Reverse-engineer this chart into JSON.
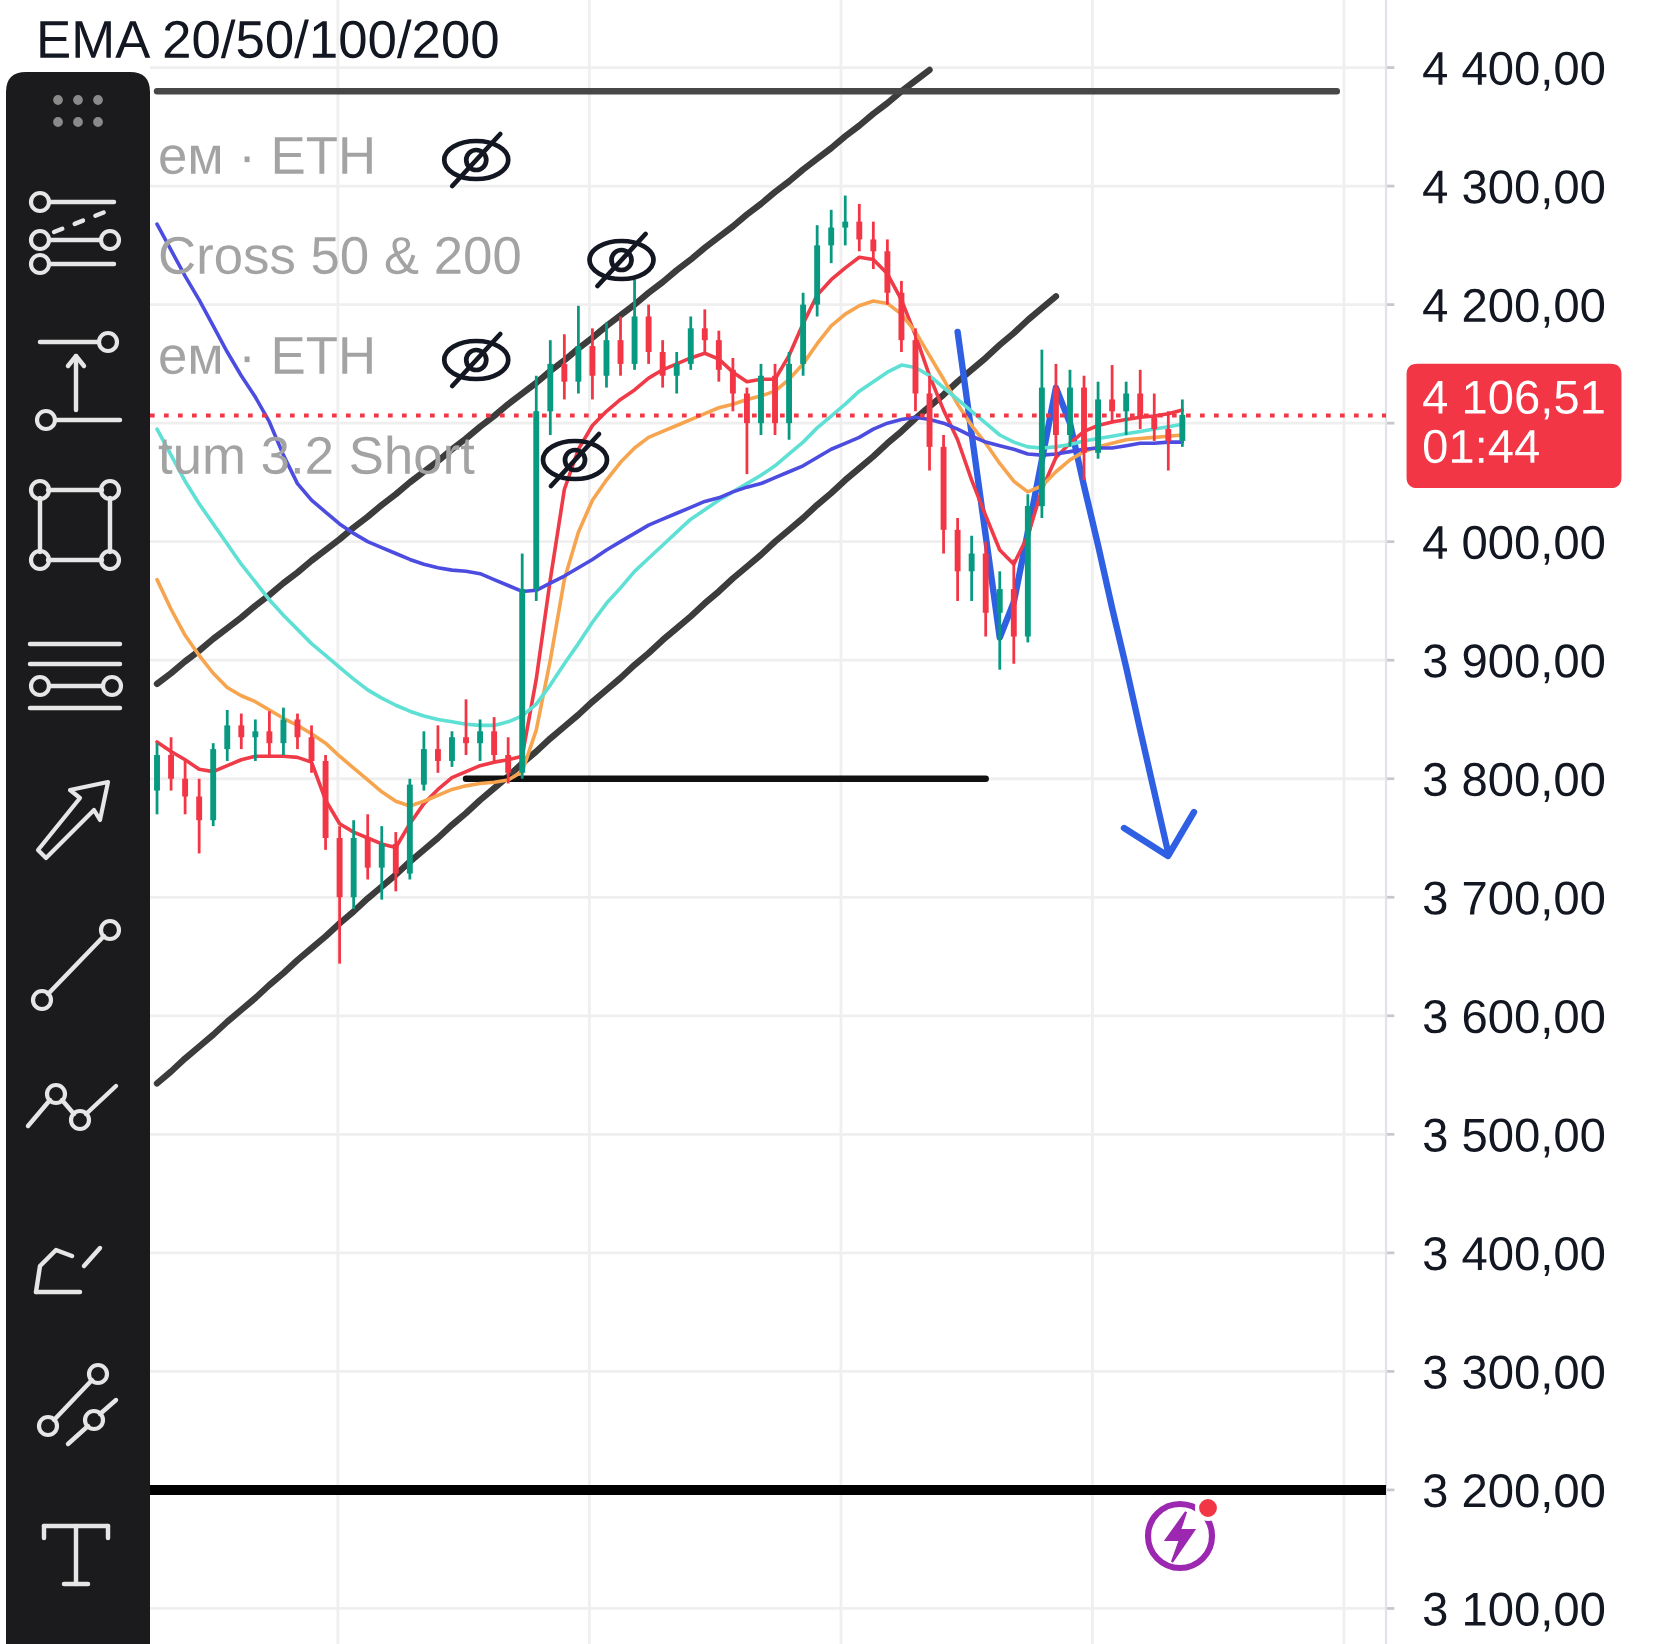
{
  "chart_data": {
    "type": "candlestick",
    "title": "EMA 20/50/100/200",
    "annotations": [
      "ем · ETH",
      "Cross 50 & 200",
      "ем · ETH",
      "tum 3.2 Short"
    ],
    "categories": [
      null,
      null,
      null,
      null,
      null,
      null,
      null,
      null,
      null,
      null,
      null,
      null,
      null,
      null,
      null,
      null,
      null,
      null,
      null,
      null,
      null,
      null,
      null,
      null,
      null,
      null,
      null,
      null,
      null,
      null,
      null,
      null,
      null,
      null,
      null,
      null,
      null,
      null,
      null,
      null,
      null,
      null,
      null,
      null,
      null,
      null,
      null,
      null,
      null,
      null,
      null,
      null,
      null,
      null,
      null,
      null,
      null,
      null,
      null,
      null,
      null,
      null,
      null,
      null,
      null,
      null,
      null,
      null,
      null,
      null,
      null,
      null,
      null,
      null,
      null,
      null,
      null,
      null,
      null,
      null,
      null,
      null,
      null,
      null,
      null,
      null,
      null,
      null
    ],
    "ohlc": [
      [
        3790,
        3830,
        3770,
        3820
      ],
      [
        3820,
        3835,
        3790,
        3800
      ],
      [
        3800,
        3815,
        3770,
        3785
      ],
      [
        3785,
        3800,
        3737,
        3765
      ],
      [
        3765,
        3830,
        3760,
        3825
      ],
      [
        3825,
        3858,
        3815,
        3845
      ],
      [
        3845,
        3855,
        3825,
        3835
      ],
      [
        3835,
        3850,
        3815,
        3840
      ],
      [
        3840,
        3857,
        3820,
        3830
      ],
      [
        3830,
        3860,
        3820,
        3850
      ],
      [
        3850,
        3855,
        3825,
        3835
      ],
      [
        3835,
        3845,
        3805,
        3815
      ],
      [
        3815,
        3820,
        3740,
        3750
      ],
      [
        3750,
        3760,
        3644,
        3700
      ],
      [
        3700,
        3765,
        3690,
        3750
      ],
      [
        3750,
        3770,
        3715,
        3725
      ],
      [
        3725,
        3760,
        3698,
        3745
      ],
      [
        3745,
        3755,
        3705,
        3720
      ],
      [
        3720,
        3800,
        3715,
        3795
      ],
      [
        3795,
        3840,
        3790,
        3825
      ],
      [
        3825,
        3845,
        3805,
        3815
      ],
      [
        3815,
        3840,
        3810,
        3835
      ],
      [
        3835,
        3867,
        3820,
        3830
      ],
      [
        3830,
        3850,
        3815,
        3840
      ],
      [
        3840,
        3852,
        3815,
        3820
      ],
      [
        3820,
        3835,
        3796,
        3805
      ],
      [
        3805,
        3990,
        3800,
        3960
      ],
      [
        3960,
        4140,
        3950,
        4110
      ],
      [
        4110,
        4170,
        4090,
        4150
      ],
      [
        4150,
        4175,
        4120,
        4135
      ],
      [
        4135,
        4199,
        4125,
        4165
      ],
      [
        4165,
        4180,
        4120,
        4140
      ],
      [
        4140,
        4185,
        4130,
        4170
      ],
      [
        4170,
        4190,
        4140,
        4150
      ],
      [
        4150,
        4221,
        4145,
        4190
      ],
      [
        4190,
        4200,
        4150,
        4160
      ],
      [
        4160,
        4170,
        4130,
        4140
      ],
      [
        4140,
        4160,
        4125,
        4150
      ],
      [
        4150,
        4190,
        4145,
        4180
      ],
      [
        4180,
        4196,
        4160,
        4170
      ],
      [
        4170,
        4178,
        4135,
        4145
      ],
      [
        4145,
        4155,
        4110,
        4125
      ],
      [
        4125,
        4130,
        4057,
        4100
      ],
      [
        4100,
        4150,
        4090,
        4140
      ],
      [
        4140,
        4150,
        4090,
        4100
      ],
      [
        4100,
        4160,
        4086,
        4150
      ],
      [
        4150,
        4210,
        4140,
        4200
      ],
      [
        4200,
        4267,
        4190,
        4250
      ],
      [
        4250,
        4280,
        4235,
        4265
      ],
      [
        4265,
        4292,
        4250,
        4270
      ],
      [
        4270,
        4285,
        4245,
        4255
      ],
      [
        4255,
        4270,
        4230,
        4245
      ],
      [
        4245,
        4255,
        4200,
        4210
      ],
      [
        4210,
        4220,
        4160,
        4170
      ],
      [
        4170,
        4180,
        4110,
        4125
      ],
      [
        4125,
        4140,
        4060,
        4080
      ],
      [
        4080,
        4090,
        3990,
        4010
      ],
      [
        4010,
        4020,
        3950,
        3975
      ],
      [
        3975,
        4005,
        3950,
        3990
      ],
      [
        3990,
        4000,
        3920,
        3940
      ],
      [
        3940,
        3975,
        3892,
        3960
      ],
      [
        3960,
        3985,
        3897,
        3920
      ],
      [
        3920,
        4040,
        3915,
        4030
      ],
      [
        4030,
        4162,
        4020,
        4130
      ],
      [
        4130,
        4150,
        4070,
        4090
      ],
      [
        4090,
        4145,
        4080,
        4130
      ],
      [
        4130,
        4140,
        4052,
        4075
      ],
      [
        4075,
        4135,
        4070,
        4120
      ],
      [
        4120,
        4149,
        4100,
        4110
      ],
      [
        4110,
        4135,
        4090,
        4125
      ],
      [
        4125,
        4145,
        4095,
        4105
      ],
      [
        4105,
        4125,
        4085,
        4095
      ],
      [
        4095,
        4110,
        4060,
        4085
      ],
      [
        4085,
        4120,
        4080,
        4107
      ],
      null,
      null,
      null,
      null,
      null,
      null,
      null,
      null,
      null,
      null,
      null,
      null,
      null,
      null
    ],
    "series": [
      {
        "type": "line",
        "color": "#ef3a47",
        "values": [
          3831,
          3823,
          3816,
          3808,
          3806,
          3811,
          3816,
          3819,
          3819,
          3819,
          3818,
          3814,
          3782,
          3762,
          3755,
          3750,
          3745,
          3742,
          3762,
          3779,
          3791,
          3801,
          3806,
          3811,
          3814,
          3816,
          3819,
          3884,
          3968,
          4044,
          4078,
          4098,
          4110,
          4120,
          4128,
          4138,
          4145,
          4150,
          4155,
          4159,
          4154,
          4143,
          4135,
          4137,
          4137,
          4157,
          4184,
          4208,
          4221,
          4231,
          4240,
          4238,
          4226,
          4204,
          4174,
          4140,
          4111,
          4086,
          4052,
          4022,
          3993,
          3981,
          4005,
          4044,
          4071,
          4083,
          4093,
          4098,
          4101,
          4103,
          4105,
          4106,
          4108,
          4111,
          null,
          null,
          null,
          null,
          null,
          null,
          null,
          null,
          null,
          null,
          null,
          null,
          null,
          null
        ]
      },
      {
        "type": "line",
        "color": "#f7a44f",
        "values": [
          3968,
          3943,
          3921,
          3904,
          3889,
          3877,
          3870,
          3865,
          3858,
          3851,
          3845,
          3838,
          3830,
          3819,
          3809,
          3799,
          3789,
          3781,
          3777,
          3781,
          3786,
          3791,
          3794,
          3796,
          3797,
          3799,
          3806,
          3841,
          3900,
          3968,
          4008,
          4035,
          4052,
          4067,
          4079,
          4088,
          4093,
          4098,
          4103,
          4108,
          4113,
          4116,
          4120,
          4123,
          4127,
          4137,
          4150,
          4167,
          4182,
          4192,
          4199,
          4203,
          4201,
          4192,
          4177,
          4157,
          4137,
          4116,
          4098,
          4083,
          4066,
          4051,
          4042,
          4047,
          4059,
          4069,
          4076,
          4080,
          4083,
          4086,
          4087,
          4088,
          4089,
          4090,
          null,
          null,
          null,
          null,
          null,
          null,
          null,
          null,
          null,
          null,
          null,
          null,
          null,
          null
        ]
      },
      {
        "type": "line",
        "color": "#5fe0d5",
        "values": [
          4095,
          4073,
          4051,
          4032,
          4015,
          3998,
          3981,
          3966,
          3951,
          3938,
          3926,
          3914,
          3904,
          3894,
          3884,
          3875,
          3868,
          3862,
          3857,
          3853,
          3850,
          3848,
          3846,
          3845,
          3845,
          3848,
          3853,
          3863,
          3879,
          3897,
          3914,
          3932,
          3948,
          3961,
          3975,
          3986,
          3997,
          4008,
          4019,
          4027,
          4035,
          4042,
          4049,
          4056,
          4064,
          4074,
          4084,
          4096,
          4106,
          4116,
          4127,
          4135,
          4143,
          4149,
          4147,
          4140,
          4130,
          4120,
          4110,
          4100,
          4090,
          4084,
          4080,
          4079,
          4080,
          4082,
          4085,
          4087,
          4089,
          4091,
          4093,
          4095,
          4097,
          4099,
          null,
          null,
          null,
          null,
          null,
          null,
          null,
          null,
          null,
          null,
          null,
          null,
          null,
          null
        ]
      },
      {
        "type": "line",
        "color": "#4c4ce0",
        "values": [
          4268,
          4246,
          4224,
          4204,
          4182,
          4160,
          4140,
          4122,
          4101,
          4073,
          4049,
          4035,
          4025,
          4015,
          4007,
          4000,
          3995,
          3990,
          3985,
          3981,
          3978,
          3976,
          3975,
          3973,
          3968,
          3963,
          3958,
          3959,
          3965,
          3971,
          3978,
          3985,
          3993,
          4000,
          4007,
          4014,
          4019,
          4024,
          4029,
          4034,
          4037,
          4042,
          4046,
          4049,
          4054,
          4059,
          4064,
          4071,
          4078,
          4083,
          4088,
          4095,
          4100,
          4103,
          4105,
          4103,
          4100,
          4095,
          4089,
          4084,
          4081,
          4078,
          4074,
          4073,
          4074,
          4076,
          4078,
          4079,
          4079,
          4081,
          4083,
          4083,
          4084,
          4084,
          null,
          null,
          null,
          null,
          null,
          null,
          null,
          null,
          null,
          null,
          null,
          null,
          null,
          null
        ]
      },
      {
        "type": "line",
        "color": "#3c3c3c",
        "values": [
          3880,
          3889,
          3899,
          3908,
          3918,
          3927,
          3936,
          3946,
          3955,
          3965,
          3974,
          3984,
          3993,
          4002,
          4012,
          4021,
          4031,
          4040,
          4050,
          4059,
          4068,
          4078,
          4087,
          4097,
          4106,
          4116,
          4125,
          4134,
          4144,
          4153,
          4163,
          4172,
          4182,
          4191,
          4200,
          4210,
          4219,
          4229,
          4238,
          4248,
          4257,
          4266,
          4276,
          4285,
          4295,
          4304,
          4314,
          4323,
          4332,
          4342,
          4351,
          4361,
          4370,
          4380,
          4389,
          4398,
          null,
          null,
          null,
          null,
          null,
          null,
          null,
          null,
          null,
          null,
          null,
          null,
          null,
          null,
          null,
          null,
          null,
          null,
          null,
          null,
          null,
          null,
          null,
          null,
          null,
          null,
          null,
          null,
          null,
          null,
          null,
          null
        ]
      },
      {
        "type": "line",
        "color": "#3c3c3c",
        "values": [
          3543,
          3553,
          3564,
          3574,
          3584,
          3595,
          3605,
          3615,
          3626,
          3636,
          3647,
          3657,
          3667,
          3678,
          3688,
          3699,
          3709,
          3719,
          3730,
          3740,
          3750,
          3761,
          3771,
          3782,
          3792,
          3802,
          3813,
          3823,
          3834,
          3844,
          3854,
          3865,
          3875,
          3885,
          3896,
          3906,
          3917,
          3927,
          3937,
          3948,
          3958,
          3969,
          3979,
          3989,
          4000,
          4010,
          4020,
          4031,
          4041,
          4052,
          4062,
          4072,
          4083,
          4093,
          4104,
          4114,
          4124,
          4135,
          4145,
          4155,
          4166,
          4176,
          4187,
          4197,
          4207,
          null,
          null,
          null,
          null,
          null,
          null,
          null,
          null,
          null,
          null,
          null,
          null,
          null,
          null,
          null,
          null,
          null,
          null,
          null,
          null,
          null,
          null,
          null
        ]
      },
      {
        "type": "line",
        "color": "#111111",
        "values": [
          null,
          null,
          null,
          null,
          null,
          null,
          null,
          null,
          null,
          null,
          null,
          null,
          null,
          null,
          null,
          null,
          null,
          null,
          null,
          null,
          null,
          null,
          3800,
          3800,
          3800,
          3800,
          3800,
          3800,
          3800,
          3800,
          3800,
          3800,
          3800,
          3800,
          3800,
          3800,
          3800,
          3800,
          3800,
          3800,
          3800,
          3800,
          3800,
          3800,
          3800,
          3800,
          3800,
          3800,
          3800,
          3800,
          3800,
          3800,
          3800,
          3800,
          3800,
          3800,
          3800,
          3800,
          3800,
          3800,
          null,
          null,
          null,
          null,
          null,
          null,
          null,
          null,
          null,
          null,
          null,
          null,
          null,
          null,
          null,
          null,
          null,
          null,
          null,
          null,
          null,
          null,
          null,
          null,
          null,
          null,
          null,
          null
        ]
      },
      {
        "type": "line",
        "color": "#474747",
        "values": [
          4380,
          4380,
          4380,
          4380,
          4380,
          4380,
          4380,
          4380,
          4380,
          4380,
          4380,
          4380,
          4380,
          4380,
          4380,
          4380,
          4380,
          4380,
          4380,
          4380,
          4380,
          4380,
          4380,
          4380,
          4380,
          4380,
          4380,
          4380,
          4380,
          4380,
          4380,
          4380,
          4380,
          4380,
          4380,
          4380,
          4380,
          4380,
          4380,
          4380,
          4380,
          4380,
          4380,
          4380,
          4380,
          4380,
          4380,
          4380,
          4380,
          4380,
          4380,
          4380,
          4380,
          4380,
          4380,
          4380,
          4380,
          4380,
          4380,
          4380,
          4380,
          4380,
          4380,
          4380,
          4380,
          4380,
          4380,
          4380,
          4380,
          4380,
          4380,
          4380,
          4380,
          4380,
          4380,
          4380,
          4380,
          4380,
          4380,
          4380,
          4380,
          4380,
          4380,
          4380,
          4380,
          null,
          null,
          null
        ]
      },
      {
        "type": "line",
        "color": "#2f5fe3",
        "values": [
          null,
          null,
          null,
          null,
          null,
          null,
          null,
          null,
          null,
          null,
          null,
          null,
          null,
          null,
          null,
          null,
          null,
          null,
          null,
          null,
          null,
          null,
          null,
          null,
          null,
          null,
          null,
          null,
          null,
          null,
          null,
          null,
          null,
          null,
          null,
          null,
          null,
          null,
          null,
          null,
          null,
          null,
          null,
          null,
          null,
          null,
          null,
          null,
          null,
          null,
          null,
          null,
          null,
          null,
          null,
          null,
          null,
          4177,
          4091,
          4005,
          3919,
          3949,
          4008,
          4069,
          4130,
          4100,
          4047,
          3997,
          3944,
          3894,
          3841,
          3789,
          3737,
          null,
          null,
          null,
          null,
          null,
          null,
          null,
          null,
          null,
          null,
          null,
          null,
          null,
          null,
          null
        ]
      }
    ],
    "ylim": [
      3070,
      4457
    ],
    "yticks": [
      {
        "value": 3100,
        "label": "3 100,00"
      },
      {
        "value": 3200,
        "label": "3 200,00"
      },
      {
        "value": 3300,
        "label": "3 300,00"
      },
      {
        "value": 3400,
        "label": "3 400,00"
      },
      {
        "value": 3500,
        "label": "3 500,00"
      },
      {
        "value": 3600,
        "label": "3 600,00"
      },
      {
        "value": 3700,
        "label": "3 700,00"
      },
      {
        "value": 3800,
        "label": "3 800,00"
      },
      {
        "value": 3900,
        "label": "3 900,00"
      },
      {
        "value": 4000,
        "label": "4 000,00"
      },
      {
        "value": 4100,
        "label": null
      },
      {
        "value": 4200,
        "label": "4 200,00"
      },
      {
        "value": 4300,
        "label": "4 300,00"
      },
      {
        "value": 4400,
        "label": "4 400,00"
      }
    ],
    "ref_lines": [
      {
        "axis": "y",
        "value": 4106.51,
        "label": "4 106,51\n01:44",
        "color": "#f23645",
        "line_style": "dotted"
      },
      {
        "axis": "y",
        "value": 3200,
        "color": "#000000",
        "line_style": "solid"
      }
    ],
    "grid": true,
    "tick_labels": "y"
  }
}
